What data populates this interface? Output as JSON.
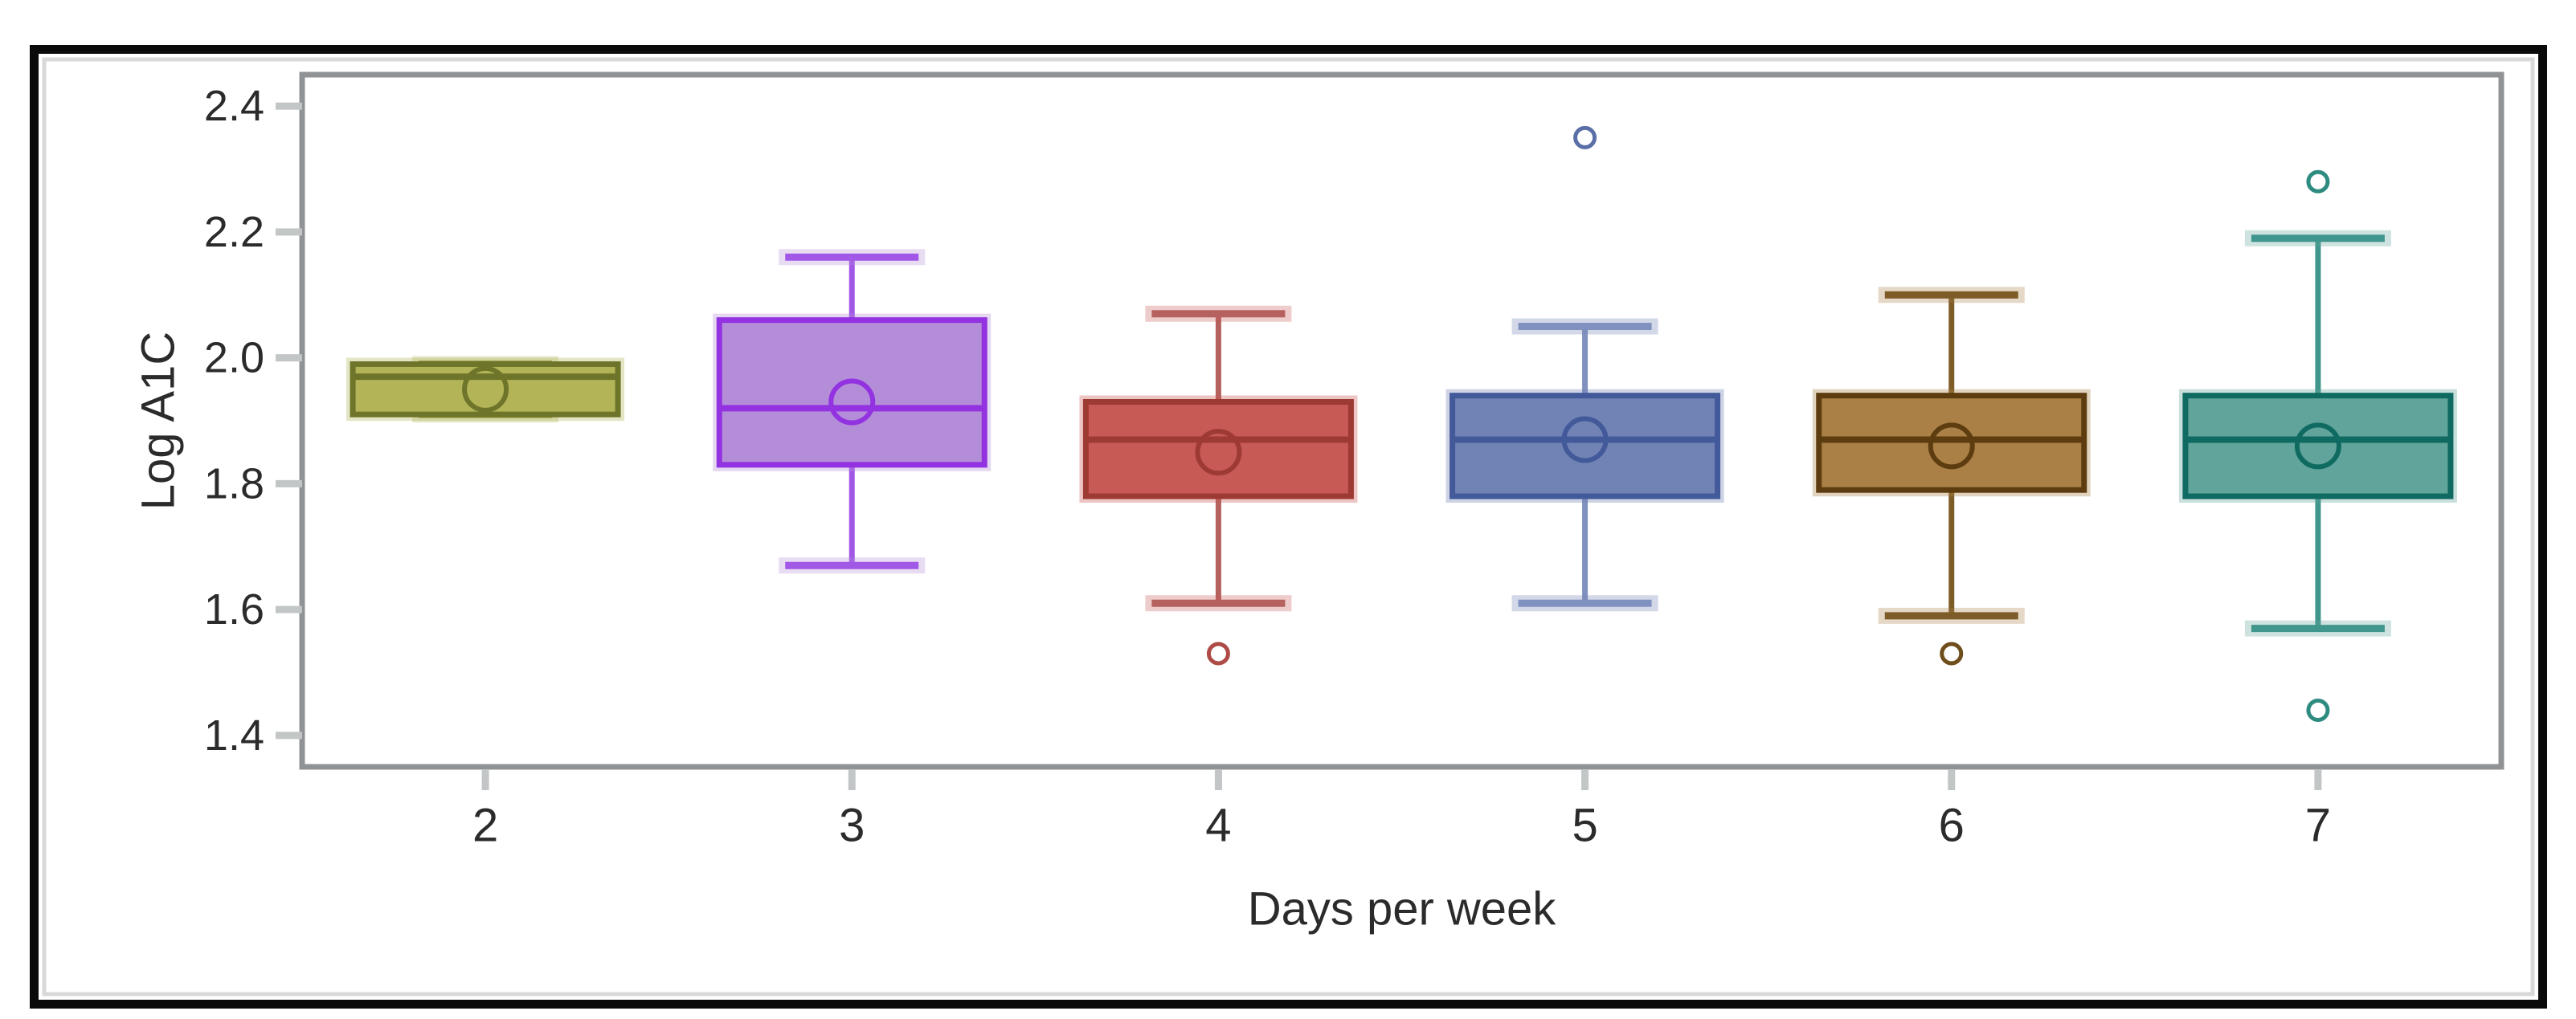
{
  "figure": {
    "background": "#ffffff",
    "outer_border_color": "#0a0a0a",
    "inner_bevel_color": "#d8d8d8",
    "frame_color": "#909395",
    "tick_color": "#c2c6c7",
    "text_color": "#2b2b2b"
  },
  "chart_data": {
    "type": "box",
    "title": "",
    "xlabel": "Days per week",
    "ylabel": "Log A1C",
    "categories": [
      "2",
      "3",
      "4",
      "5",
      "6",
      "7"
    ],
    "y_tick_labels": [
      "2.4",
      "2.2",
      "2.0",
      "1.8",
      "1.6",
      "1.4"
    ],
    "y_ticks": [
      2.4,
      2.2,
      2.0,
      1.8,
      1.6,
      1.4
    ],
    "ylim": [
      1.35,
      2.45
    ],
    "grid": false,
    "legend": false,
    "series": [
      {
        "category": "2",
        "fill": "#b2b457",
        "stroke": "#6e7429",
        "whisker_color": "#8a8f3e",
        "outlier_color": "#8a8f3e",
        "whisker_low": 1.91,
        "q1": 1.91,
        "median": 1.97,
        "q3": 1.99,
        "whisker_high": 1.99,
        "mean": 1.95,
        "outliers": []
      },
      {
        "category": "3",
        "fill": "#b48dd8",
        "stroke": "#9232e0",
        "whisker_color": "#a158e6",
        "outlier_color": "#a158e6",
        "whisker_low": 1.67,
        "q1": 1.83,
        "median": 1.92,
        "q3": 2.06,
        "whisker_high": 2.16,
        "mean": 1.93,
        "outliers": []
      },
      {
        "category": "4",
        "fill": "#c85a56",
        "stroke": "#9e3a34",
        "whisker_color": "#b5625f",
        "outlier_color": "#ae4b47",
        "whisker_low": 1.61,
        "q1": 1.78,
        "median": 1.87,
        "q3": 1.93,
        "whisker_high": 2.07,
        "mean": 1.85,
        "outliers": [
          1.53
        ]
      },
      {
        "category": "5",
        "fill": "#7182b5",
        "stroke": "#42599a",
        "whisker_color": "#8191bf",
        "outlier_color": "#5a6fa8",
        "whisker_low": 1.61,
        "q1": 1.78,
        "median": 1.87,
        "q3": 1.94,
        "whisker_high": 2.05,
        "mean": 1.87,
        "outliers": [
          2.35
        ]
      },
      {
        "category": "6",
        "fill": "#aa8046",
        "stroke": "#5d3d10",
        "whisker_color": "#7d5c28",
        "outlier_color": "#6f4e1c",
        "whisker_low": 1.59,
        "q1": 1.79,
        "median": 1.87,
        "q3": 1.94,
        "whisker_high": 2.1,
        "mean": 1.86,
        "outliers": [
          1.53
        ]
      },
      {
        "category": "7",
        "fill": "#61a49c",
        "stroke": "#0f6b61",
        "whisker_color": "#3f968d",
        "outlier_color": "#2e8b80",
        "whisker_low": 1.57,
        "q1": 1.78,
        "median": 1.87,
        "q3": 1.94,
        "whisker_high": 2.19,
        "mean": 1.86,
        "outliers": [
          2.28,
          1.44
        ]
      }
    ]
  }
}
